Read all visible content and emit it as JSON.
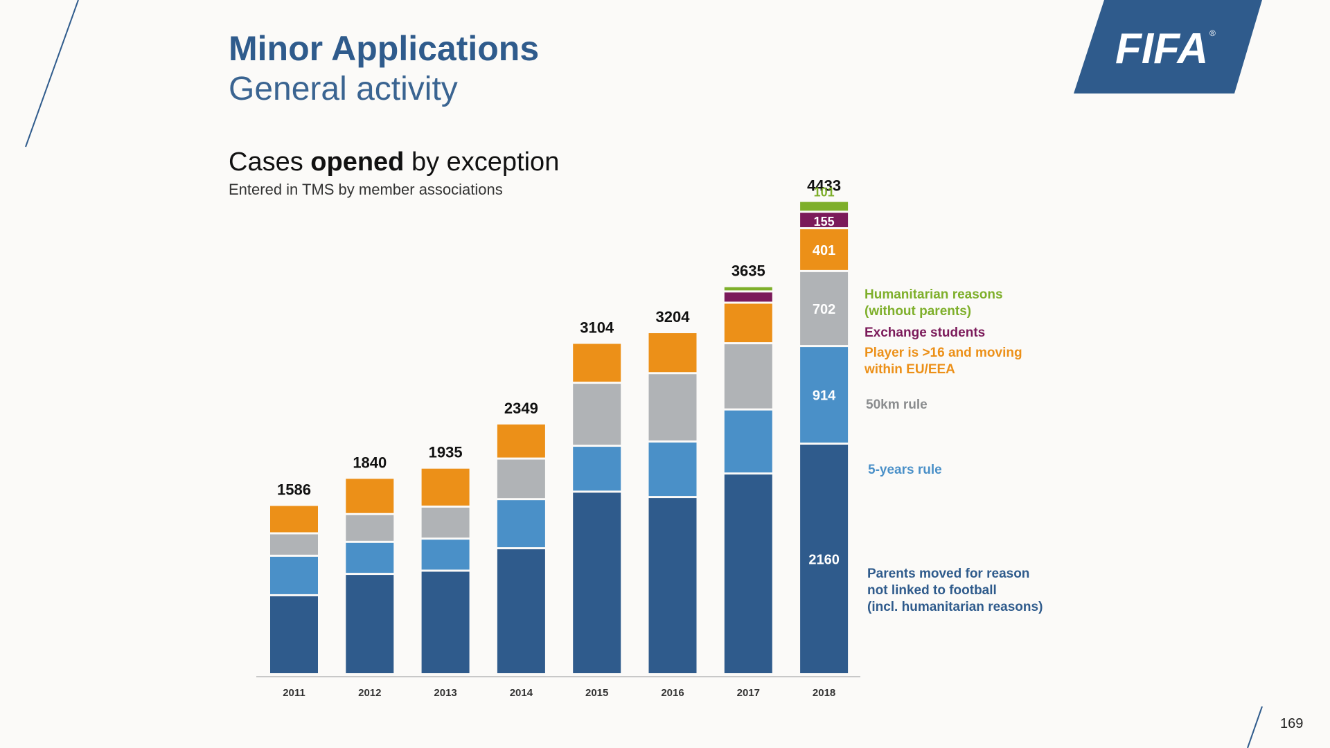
{
  "header": {
    "title": "Minor Applications",
    "subtitle": "General activity"
  },
  "chart_heading": {
    "pre": "Cases ",
    "bold": "opened",
    "post": " by exception",
    "sub": "Entered in TMS by member associations"
  },
  "logo": {
    "text": "FIFA",
    "mark": "®",
    "bg": "#2f5b8c"
  },
  "page_number": "169",
  "colors": {
    "parents": "#2f5b8c",
    "five_years": "#4a90c8",
    "fifty_km": "#b0b3b6",
    "eu_eea": "#ec9018",
    "exchange": "#7b1a5a",
    "humanitarian": "#7eaf2a"
  },
  "chart_data": {
    "type": "bar",
    "stacked": true,
    "categories": [
      "2011",
      "2012",
      "2013",
      "2014",
      "2015",
      "2016",
      "2017",
      "2018"
    ],
    "totals": [
      1586,
      1840,
      1935,
      2349,
      3104,
      3204,
      3635,
      4433
    ],
    "series": [
      {
        "key": "parents",
        "name": "Parents moved for reason not linked to football (incl. humanitarian reasons)",
        "legend_lines": [
          "Parents moved for reason",
          "not linked  to football",
          "(incl. humanitarian  reasons)"
        ],
        "values": [
          740,
          940,
          970,
          1180,
          1710,
          1660,
          1880,
          2160
        ]
      },
      {
        "key": "five_years",
        "name": "5-years rule",
        "legend_lines": [
          "5-years rule"
        ],
        "values": [
          370,
          300,
          300,
          460,
          430,
          520,
          600,
          914
        ]
      },
      {
        "key": "fifty_km",
        "name": "50km rule",
        "legend_lines": [
          "50km rule"
        ],
        "values": [
          210,
          260,
          300,
          380,
          590,
          640,
          620,
          702
        ]
      },
      {
        "key": "eu_eea",
        "name": "Player is >16 and moving within EU/EEA",
        "legend_lines": [
          "Player is >16 and moving",
          "within EU/EEA"
        ],
        "values": [
          266,
          340,
          365,
          329,
          374,
          384,
          380,
          401
        ]
      },
      {
        "key": "exchange",
        "name": "Exchange students",
        "legend_lines": [
          "Exchange students"
        ],
        "values": [
          0,
          0,
          0,
          0,
          0,
          0,
          105,
          155
        ]
      },
      {
        "key": "humanitarian",
        "name": "Humanitarian reasons (without parents)",
        "legend_lines": [
          "Humanitarian reasons",
          "(without parents)"
        ],
        "values": [
          0,
          0,
          0,
          0,
          0,
          0,
          50,
          101
        ]
      }
    ],
    "labeled_category": "2018",
    "labeled_values": [
      "2160",
      "914",
      "702",
      "401",
      "155",
      "101"
    ],
    "ylim": [
      0,
      4800
    ],
    "grid": false,
    "legend_position": "right"
  }
}
